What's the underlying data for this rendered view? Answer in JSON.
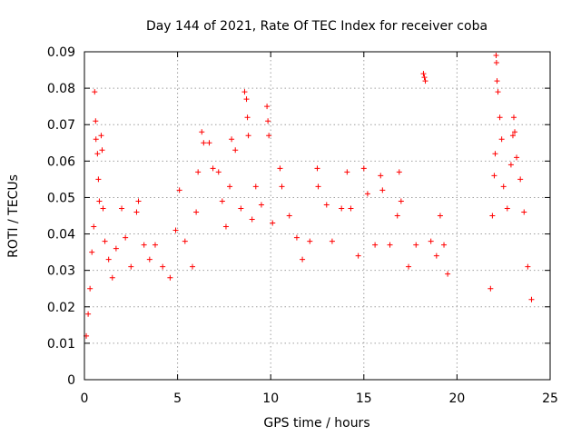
{
  "chart_data": {
    "type": "scatter",
    "title": "Day 144 of 2021, Rate Of TEC Index for receiver coba",
    "xlabel": "GPS time / hours",
    "ylabel": "ROTI / TECUs",
    "xlim": [
      0,
      25
    ],
    "ylim": [
      0,
      0.09
    ],
    "xticks": [
      0,
      5,
      10,
      15,
      20,
      25
    ],
    "xtick_labels": [
      "0",
      "5",
      "10",
      "15",
      "20",
      "25"
    ],
    "yticks": [
      0,
      0.01,
      0.02,
      0.03,
      0.04,
      0.05,
      0.06,
      0.07,
      0.08,
      0.09
    ],
    "ytick_labels": [
      "0",
      "0.01",
      "0.02",
      "0.03",
      "0.04",
      "0.05",
      "0.06",
      "0.07",
      "0.08",
      "0.09"
    ],
    "grid": true,
    "marker": "+",
    "marker_color": "#ff0000",
    "data_gap_hours": [
      19.6,
      21.7
    ],
    "series": [
      {
        "points": [
          [
            0.1,
            0.012
          ],
          [
            0.2,
            0.018
          ],
          [
            0.3,
            0.025
          ],
          [
            0.4,
            0.035
          ],
          [
            0.5,
            0.042
          ],
          [
            0.55,
            0.079
          ],
          [
            0.6,
            0.071
          ],
          [
            0.62,
            0.066
          ],
          [
            0.7,
            0.062
          ],
          [
            0.75,
            0.055
          ],
          [
            0.8,
            0.049
          ],
          [
            0.9,
            0.067
          ],
          [
            0.95,
            0.063
          ],
          [
            1.0,
            0.047
          ],
          [
            1.1,
            0.038
          ],
          [
            1.3,
            0.033
          ],
          [
            1.5,
            0.028
          ],
          [
            1.7,
            0.036
          ],
          [
            2.0,
            0.047
          ],
          [
            2.2,
            0.039
          ],
          [
            2.5,
            0.031
          ],
          [
            2.8,
            0.046
          ],
          [
            2.9,
            0.049
          ],
          [
            3.2,
            0.037
          ],
          [
            3.5,
            0.033
          ],
          [
            3.8,
            0.037
          ],
          [
            4.2,
            0.031
          ],
          [
            4.6,
            0.028
          ],
          [
            4.9,
            0.041
          ],
          [
            5.1,
            0.052
          ],
          [
            5.4,
            0.038
          ],
          [
            5.8,
            0.031
          ],
          [
            6.0,
            0.046
          ],
          [
            6.1,
            0.057
          ],
          [
            6.3,
            0.068
          ],
          [
            6.4,
            0.065
          ],
          [
            6.7,
            0.065
          ],
          [
            6.9,
            0.058
          ],
          [
            7.2,
            0.057
          ],
          [
            7.4,
            0.049
          ],
          [
            7.6,
            0.042
          ],
          [
            7.8,
            0.053
          ],
          [
            7.9,
            0.066
          ],
          [
            8.1,
            0.063
          ],
          [
            8.4,
            0.047
          ],
          [
            8.6,
            0.079
          ],
          [
            8.7,
            0.077
          ],
          [
            8.75,
            0.072
          ],
          [
            8.8,
            0.067
          ],
          [
            9.0,
            0.044
          ],
          [
            9.2,
            0.053
          ],
          [
            9.5,
            0.048
          ],
          [
            9.8,
            0.075
          ],
          [
            9.85,
            0.071
          ],
          [
            9.9,
            0.067
          ],
          [
            10.1,
            0.043
          ],
          [
            10.5,
            0.058
          ],
          [
            10.6,
            0.053
          ],
          [
            11.0,
            0.045
          ],
          [
            11.4,
            0.039
          ],
          [
            11.7,
            0.033
          ],
          [
            12.1,
            0.038
          ],
          [
            12.5,
            0.058
          ],
          [
            12.55,
            0.053
          ],
          [
            13.0,
            0.048
          ],
          [
            13.3,
            0.038
          ],
          [
            13.8,
            0.047
          ],
          [
            14.1,
            0.057
          ],
          [
            14.3,
            0.047
          ],
          [
            14.7,
            0.034
          ],
          [
            15.0,
            0.058
          ],
          [
            15.2,
            0.051
          ],
          [
            15.6,
            0.037
          ],
          [
            15.9,
            0.056
          ],
          [
            16.0,
            0.052
          ],
          [
            16.4,
            0.037
          ],
          [
            16.8,
            0.045
          ],
          [
            16.9,
            0.057
          ],
          [
            17.0,
            0.049
          ],
          [
            17.4,
            0.031
          ],
          [
            17.8,
            0.037
          ],
          [
            18.2,
            0.084
          ],
          [
            18.25,
            0.083
          ],
          [
            18.3,
            0.082
          ],
          [
            18.6,
            0.038
          ],
          [
            18.9,
            0.034
          ],
          [
            19.1,
            0.045
          ],
          [
            19.3,
            0.037
          ],
          [
            19.5,
            0.029
          ],
          [
            21.8,
            0.025
          ],
          [
            21.9,
            0.045
          ],
          [
            22.0,
            0.056
          ],
          [
            22.05,
            0.062
          ],
          [
            22.1,
            0.089
          ],
          [
            22.12,
            0.087
          ],
          [
            22.15,
            0.082
          ],
          [
            22.2,
            0.079
          ],
          [
            22.3,
            0.072
          ],
          [
            22.4,
            0.066
          ],
          [
            22.5,
            0.053
          ],
          [
            22.7,
            0.047
          ],
          [
            22.9,
            0.059
          ],
          [
            23.0,
            0.067
          ],
          [
            23.05,
            0.072
          ],
          [
            23.1,
            0.068
          ],
          [
            23.2,
            0.061
          ],
          [
            23.4,
            0.055
          ],
          [
            23.6,
            0.046
          ],
          [
            23.8,
            0.031
          ],
          [
            24.0,
            0.022
          ]
        ]
      }
    ]
  }
}
